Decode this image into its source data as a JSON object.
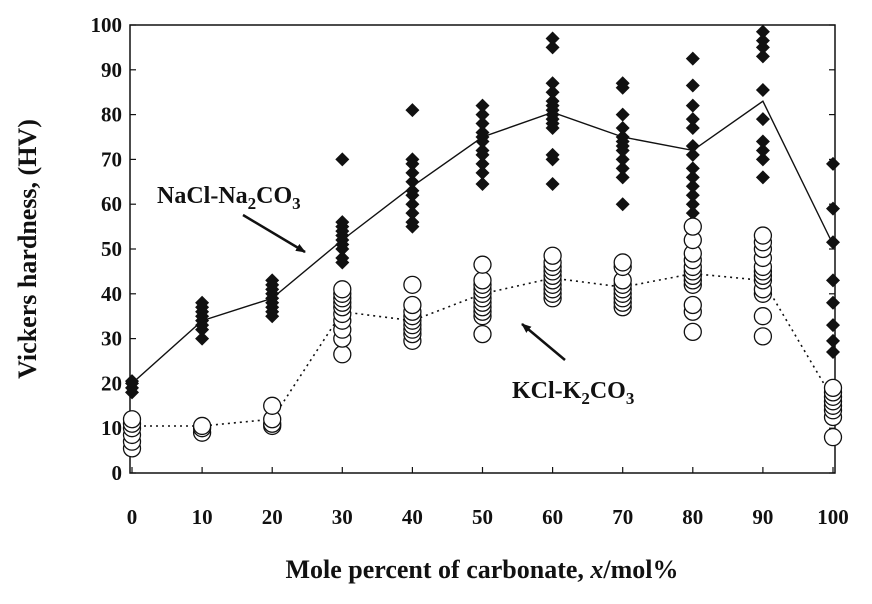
{
  "chart_data": {
    "type": "scatter",
    "xlabel_main": "Mole percent of carbonate, ",
    "xlabel_var": "x",
    "xlabel_unit": "/mol%",
    "ylabel": "Vickers hardness, (HV)",
    "xlim": [
      0,
      100
    ],
    "ylim": [
      0,
      100
    ],
    "xticks": [
      0,
      10,
      20,
      30,
      40,
      50,
      60,
      70,
      80,
      90,
      100
    ],
    "yticks": [
      0,
      10,
      20,
      30,
      40,
      50,
      60,
      70,
      80,
      90,
      100
    ],
    "grid": false,
    "series": [
      {
        "name": "NaCl-Na2CO3",
        "marker": "filled-diamond",
        "line": "solid",
        "mean_line": [
          [
            0,
            20
          ],
          [
            10,
            34
          ],
          [
            20,
            39
          ],
          [
            30,
            52
          ],
          [
            40,
            64
          ],
          [
            50,
            75
          ],
          [
            60,
            80.5
          ],
          [
            70,
            75
          ],
          [
            80,
            72
          ],
          [
            90,
            83
          ],
          [
            100,
            51
          ]
        ],
        "points": [
          {
            "x": 0,
            "values": [
              18,
              19,
              20,
              20.5
            ]
          },
          {
            "x": 10,
            "values": [
              30,
              32,
              33,
              34,
              35,
              36,
              37,
              38
            ]
          },
          {
            "x": 20,
            "values": [
              35,
              36,
              37,
              38,
              39,
              40,
              41,
              42,
              43
            ]
          },
          {
            "x": 30,
            "values": [
              47,
              48,
              50,
              51,
              52,
              53,
              54,
              55,
              56,
              70
            ]
          },
          {
            "x": 40,
            "values": [
              55,
              56,
              58,
              60,
              62,
              63,
              65,
              67,
              69,
              70,
              81
            ]
          },
          {
            "x": 50,
            "values": [
              64.5,
              67,
              69,
              71,
              72,
              74,
              75,
              76,
              78,
              80,
              82
            ]
          },
          {
            "x": 60,
            "values": [
              64.5,
              70,
              71,
              77,
              78,
              79,
              80,
              81,
              82,
              83,
              85,
              87,
              95,
              97
            ]
          },
          {
            "x": 70,
            "values": [
              60,
              66,
              68,
              70,
              72,
              73,
              74,
              75,
              77,
              80,
              86,
              87
            ]
          },
          {
            "x": 80,
            "values": [
              56,
              58,
              60,
              62,
              64,
              66,
              68,
              71,
              73,
              77,
              79,
              82,
              86.5,
              92.5
            ]
          },
          {
            "x": 90,
            "values": [
              66,
              70,
              72,
              74,
              79,
              85.5,
              93,
              95,
              96.5,
              98.5
            ]
          },
          {
            "x": 100,
            "values": [
              27,
              29.5,
              33,
              38,
              43,
              51.5,
              59,
              69
            ]
          }
        ]
      },
      {
        "name": "KCl-K2CO3",
        "marker": "open-circle",
        "line": "dotted",
        "mean_line": [
          [
            0,
            10.5
          ],
          [
            10,
            10.5
          ],
          [
            20,
            12
          ],
          [
            30,
            36
          ],
          [
            40,
            34
          ],
          [
            50,
            40
          ],
          [
            60,
            43.5
          ],
          [
            70,
            41.5
          ],
          [
            80,
            44.5
          ],
          [
            90,
            43
          ],
          [
            100,
            16.5
          ]
        ],
        "points": [
          {
            "x": 0,
            "values": [
              5.5,
              7,
              8.5,
              10,
              11,
              12
            ]
          },
          {
            "x": 10,
            "values": [
              9,
              10,
              10.5
            ]
          },
          {
            "x": 20,
            "values": [
              10.5,
              11,
              12,
              15
            ]
          },
          {
            "x": 30,
            "values": [
              26.5,
              30,
              32,
              34,
              35.5,
              37,
              38,
              39,
              40,
              41
            ]
          },
          {
            "x": 40,
            "values": [
              29.5,
              31,
              32,
              33,
              34,
              35,
              36,
              37.5,
              42
            ]
          },
          {
            "x": 50,
            "values": [
              31,
              35,
              36,
              37,
              38,
              39,
              40,
              41,
              42,
              43,
              46.5
            ]
          },
          {
            "x": 60,
            "values": [
              39,
              40,
              41,
              42,
              43,
              44,
              45,
              46,
              47,
              48.5
            ]
          },
          {
            "x": 70,
            "values": [
              37,
              38,
              39,
              40,
              41,
              42,
              43,
              46,
              47
            ]
          },
          {
            "x": 80,
            "values": [
              31.5,
              36,
              37.5,
              42,
              43,
              44,
              45,
              46,
              47.5,
              49,
              52,
              55
            ]
          },
          {
            "x": 90,
            "values": [
              30.5,
              35,
              40,
              41,
              43,
              44,
              45,
              46,
              48,
              50,
              51.5,
              53
            ]
          },
          {
            "x": 100,
            "values": [
              8,
              12.5,
              14,
              15,
              16,
              17,
              18,
              19
            ]
          }
        ]
      }
    ],
    "annotations": [
      {
        "label_main_1": "NaCl-Na",
        "label_sub_1": "2",
        "label_main_2": "CO",
        "label_sub_2": "3",
        "arrow_to": [
          25,
          50
        ]
      },
      {
        "label_main_1": "KCl-K",
        "label_sub_1": "2",
        "label_main_2": "CO",
        "label_sub_2": "3",
        "arrow_to": [
          55,
          33
        ]
      }
    ]
  }
}
